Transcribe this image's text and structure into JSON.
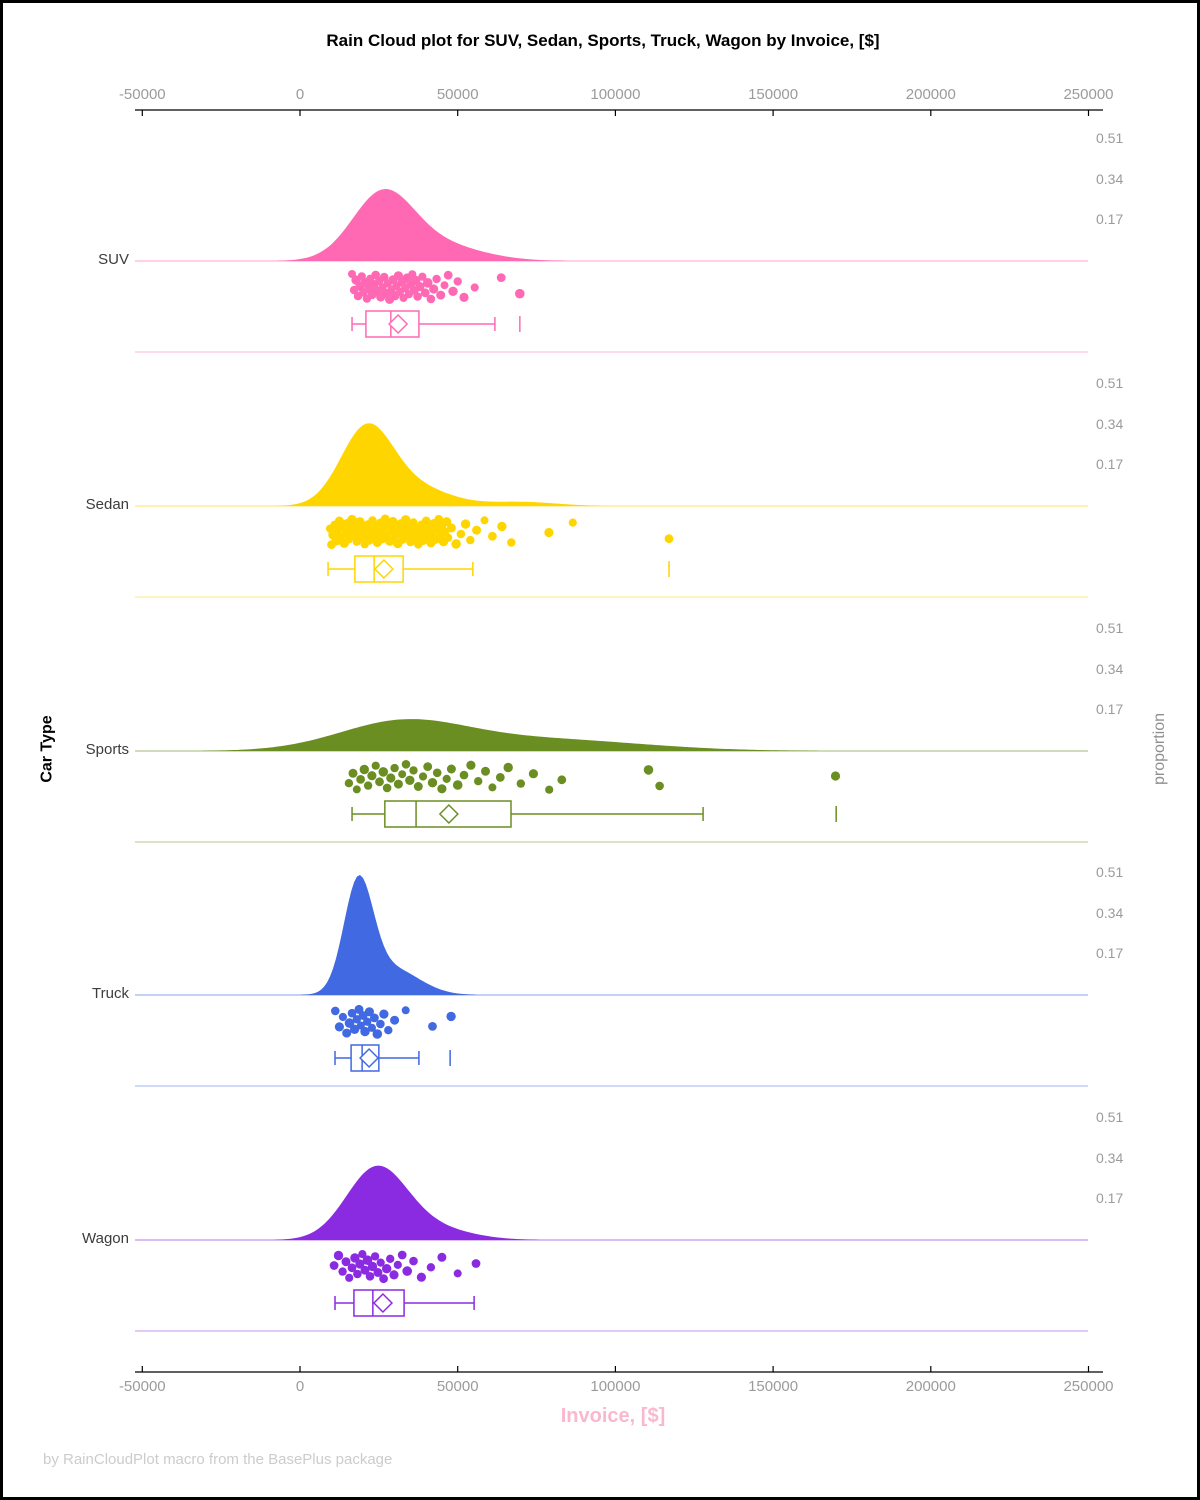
{
  "title": "Rain Cloud plot for SUV, Sedan, Sports, Truck, Wagon by Invoice, [$]",
  "footer": "by RainCloudPlot macro from the BasePlus package",
  "y_axis_left_label": "Car Type",
  "y_axis_right_label": "proportion",
  "x_axis": {
    "label": "Invoice, [$]",
    "label_color": "#f9b8cf",
    "tick_values": [
      -50000,
      0,
      50000,
      100000,
      150000,
      200000,
      250000
    ],
    "tick_labels": [
      "-50000",
      "0",
      "50000",
      "100000",
      "150000",
      "200000",
      "250000"
    ]
  },
  "chart_data": {
    "type": "raincloud",
    "title": "Rain Cloud plot for SUV, Sedan, Sports, Truck, Wagon by Invoice, [$]",
    "xlabel": "Invoice, [$]",
    "ylabel_left": "Car Type",
    "ylabel_right": "proportion",
    "x_range": [
      -50000,
      250000
    ],
    "proportion_ticks": [
      0.51,
      0.34,
      0.17
    ],
    "grid": false,
    "legend": "none",
    "series": [
      {
        "name": "SUV",
        "color": "#ff69b4",
        "density": {
          "components": [
            [
              26000,
              9500,
              1.0
            ],
            [
              40000,
              15000,
              0.32
            ]
          ],
          "peak_proportion": 0.3
        },
        "box": {
          "whisker_low": 16500,
          "q1": 20900,
          "median": 28800,
          "q3": 37700,
          "whisker_high": 61800,
          "mean": 31100,
          "outliers": [
            69700
          ]
        },
        "points": [
          16500,
          17200,
          17800,
          18400,
          19000,
          19600,
          20100,
          20700,
          21200,
          21800,
          22300,
          22900,
          23400,
          24000,
          24500,
          25100,
          25600,
          26200,
          26700,
          27300,
          27800,
          28400,
          29000,
          29500,
          30100,
          30600,
          31200,
          31700,
          32300,
          32800,
          33400,
          34000,
          34500,
          35100,
          35600,
          36200,
          36700,
          37300,
          38000,
          38800,
          39700,
          40500,
          41500,
          42400,
          43300,
          44600,
          45800,
          47000,
          48500,
          50000,
          52000,
          55400,
          63800,
          69700
        ]
      },
      {
        "name": "Sedan",
        "color": "#ffd500",
        "density": {
          "components": [
            [
              21000,
              8200,
              1.0
            ],
            [
              36000,
              11000,
              0.25
            ],
            [
              70000,
              11000,
              0.055
            ]
          ],
          "peak_proportion": 0.345
        },
        "box": {
          "whisker_low": 8900,
          "q1": 17400,
          "median": 23500,
          "q3": 32700,
          "whisker_high": 54800,
          "mean": 26600,
          "outliers": [
            117000
          ]
        },
        "points": [
          9500,
          10000,
          10500,
          11000,
          11500,
          12000,
          12500,
          13000,
          13500,
          14000,
          14500,
          15000,
          15500,
          16000,
          16500,
          17000,
          17500,
          18000,
          18500,
          19000,
          19500,
          20000,
          20500,
          21000,
          21500,
          22000,
          22500,
          23000,
          23500,
          24000,
          24500,
          25000,
          25500,
          26000,
          26500,
          27000,
          27500,
          28000,
          28500,
          29000,
          29500,
          30000,
          30500,
          31000,
          31500,
          32000,
          32500,
          33000,
          33500,
          34000,
          34500,
          35000,
          35500,
          36000,
          36500,
          37000,
          37500,
          38000,
          38500,
          39000,
          39500,
          40000,
          40500,
          41000,
          41500,
          42000,
          42500,
          43000,
          43500,
          44000,
          44500,
          45000,
          45500,
          46000,
          46500,
          47000,
          48000,
          49500,
          51000,
          52500,
          54000,
          56000,
          58500,
          61000,
          64000,
          67000,
          78900,
          86500,
          117000
        ]
      },
      {
        "name": "Sports",
        "color": "#6b8e23",
        "density": {
          "components": [
            [
              32000,
              20000,
              1.0
            ],
            [
              75000,
              32000,
              0.45
            ]
          ],
          "peak_proportion": 0.133
        },
        "box": {
          "whisker_low": 16500,
          "q1": 26900,
          "median": 36800,
          "q3": 66900,
          "whisker_high": 127800,
          "mean": 47200,
          "outliers": [
            170000
          ]
        },
        "points": [
          15500,
          16800,
          18000,
          19200,
          20400,
          21600,
          22800,
          24000,
          25200,
          26400,
          27600,
          28800,
          30000,
          31200,
          32400,
          33600,
          34800,
          36000,
          37500,
          39000,
          40500,
          42000,
          43500,
          45000,
          46500,
          48000,
          50000,
          52000,
          54200,
          56500,
          58800,
          61000,
          63500,
          66000,
          70000,
          74000,
          79000,
          83000,
          110500,
          114000,
          169800
        ]
      },
      {
        "name": "Truck",
        "color": "#4169e1",
        "density": {
          "components": [
            [
              18500,
              4600,
              1.0
            ],
            [
              28500,
              9000,
              0.26
            ]
          ],
          "peak_proportion": 0.5
        },
        "box": {
          "whisker_low": 11100,
          "q1": 16200,
          "median": 19700,
          "q3": 25000,
          "whisker_high": 37700,
          "mean": 21900,
          "outliers": [
            47600
          ]
        },
        "points": [
          11200,
          12500,
          13600,
          14800,
          15700,
          16500,
          17300,
          18000,
          18700,
          19300,
          20000,
          20600,
          21300,
          22000,
          22800,
          23600,
          24500,
          25500,
          26600,
          28000,
          30000,
          33500,
          42000,
          47900
        ]
      },
      {
        "name": "Wagon",
        "color": "#8a2be2",
        "density": {
          "components": [
            [
              24000,
              9500,
              1.0
            ],
            [
              39000,
              13000,
              0.2
            ]
          ],
          "peak_proportion": 0.31
        },
        "box": {
          "whisker_low": 11100,
          "q1": 17100,
          "median": 23100,
          "q3": 33000,
          "whisker_high": 55200,
          "mean": 26300,
          "outliers": []
        },
        "points": [
          10800,
          12200,
          13500,
          14600,
          15600,
          16500,
          17400,
          18200,
          19000,
          19800,
          20600,
          21400,
          22200,
          23000,
          23800,
          24700,
          25600,
          26500,
          27500,
          28600,
          29800,
          31000,
          32400,
          34000,
          36000,
          38500,
          41500,
          45000,
          50000,
          55800
        ]
      }
    ]
  }
}
